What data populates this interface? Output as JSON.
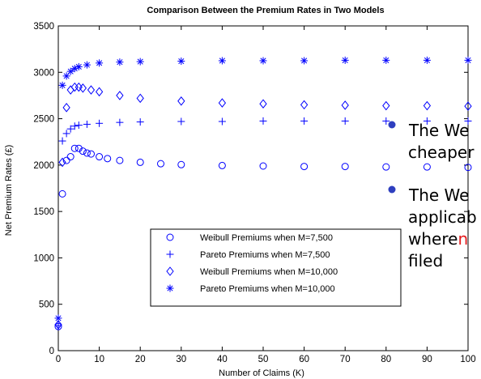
{
  "chart_data": {
    "type": "scatter",
    "title": "Comparison Between the Premium Rates in Two Models",
    "xlabel": "Number of Claims (K)",
    "ylabel": "Net Premium Rates (£)",
    "xlim": [
      0,
      100
    ],
    "ylim": [
      0,
      3500
    ],
    "xticks": [
      "0",
      "10",
      "20",
      "30",
      "40",
      "50",
      "60",
      "70",
      "80",
      "90",
      "100"
    ],
    "yticks": [
      "0",
      "500",
      "1000",
      "1500",
      "2000",
      "2500",
      "3000",
      "3500"
    ],
    "grid": false,
    "legend_position": "bottom-right",
    "series_color": "#0000ff",
    "series": [
      {
        "name": "Weibull Premiums when M=7,500",
        "marker": "circle",
        "points": [
          [
            0,
            260
          ],
          [
            1,
            1690
          ],
          [
            2,
            2050
          ],
          [
            3,
            2090
          ],
          [
            4,
            2180
          ],
          [
            5,
            2180
          ],
          [
            6,
            2150
          ],
          [
            7,
            2130
          ],
          [
            8,
            2120
          ],
          [
            10,
            2090
          ],
          [
            12,
            2070
          ],
          [
            15,
            2050
          ],
          [
            20,
            2030
          ],
          [
            25,
            2015
          ],
          [
            30,
            2005
          ],
          [
            40,
            1995
          ],
          [
            50,
            1990
          ],
          [
            60,
            1985
          ],
          [
            70,
            1985
          ],
          [
            80,
            1980
          ],
          [
            90,
            1980
          ],
          [
            100,
            1975
          ]
        ]
      },
      {
        "name": "Pareto Premiums when M=7,500",
        "marker": "plus",
        "points": [
          [
            0,
            270
          ],
          [
            1,
            2260
          ],
          [
            2,
            2340
          ],
          [
            3,
            2390
          ],
          [
            4,
            2420
          ],
          [
            5,
            2430
          ],
          [
            7,
            2440
          ],
          [
            10,
            2450
          ],
          [
            15,
            2460
          ],
          [
            20,
            2465
          ],
          [
            30,
            2470
          ],
          [
            40,
            2470
          ],
          [
            50,
            2475
          ],
          [
            60,
            2475
          ],
          [
            70,
            2475
          ],
          [
            80,
            2475
          ],
          [
            90,
            2475
          ],
          [
            100,
            2475
          ]
        ]
      },
      {
        "name": "Weibull Premiums when M=10,000",
        "marker": "diamond",
        "points": [
          [
            0,
            280
          ],
          [
            1,
            2030
          ],
          [
            2,
            2620
          ],
          [
            3,
            2810
          ],
          [
            4,
            2840
          ],
          [
            5,
            2840
          ],
          [
            6,
            2830
          ],
          [
            8,
            2810
          ],
          [
            10,
            2790
          ],
          [
            15,
            2750
          ],
          [
            20,
            2720
          ],
          [
            30,
            2690
          ],
          [
            40,
            2670
          ],
          [
            50,
            2660
          ],
          [
            60,
            2650
          ],
          [
            70,
            2645
          ],
          [
            80,
            2640
          ],
          [
            90,
            2640
          ],
          [
            100,
            2635
          ]
        ]
      },
      {
        "name": "Pareto Premiums when M=10,000",
        "marker": "star",
        "points": [
          [
            0,
            350
          ],
          [
            1,
            2860
          ],
          [
            2,
            2960
          ],
          [
            3,
            3010
          ],
          [
            4,
            3040
          ],
          [
            5,
            3060
          ],
          [
            7,
            3080
          ],
          [
            10,
            3100
          ],
          [
            15,
            3110
          ],
          [
            20,
            3115
          ],
          [
            30,
            3120
          ],
          [
            40,
            3125
          ],
          [
            50,
            3125
          ],
          [
            60,
            3125
          ],
          [
            70,
            3130
          ],
          [
            80,
            3130
          ],
          [
            90,
            3130
          ],
          [
            100,
            3130
          ]
        ]
      }
    ]
  },
  "slide": {
    "bullet_color": "#2e3fbf",
    "highlight_color": "#e41a1c",
    "bullets": [
      [
        {
          "text": "The We",
          "color": "#000000"
        },
        {
          "text": "cheaper",
          "color": "#000000"
        }
      ],
      [
        {
          "text": "The We",
          "color": "#000000"
        },
        {
          "text": "applicab",
          "color": "#000000"
        },
        {
          "text": "where ",
          "color": "#000000",
          "inline": true
        },
        {
          "text": "n",
          "color": "highlight"
        },
        {
          "text": "filed",
          "color": "#000000"
        }
      ]
    ]
  }
}
